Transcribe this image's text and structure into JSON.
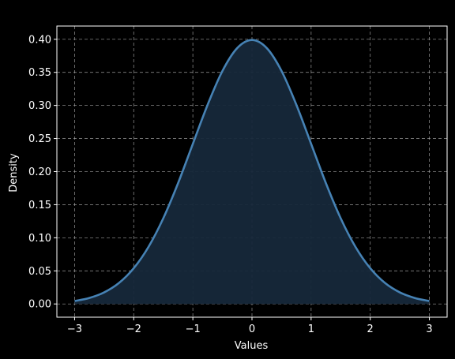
{
  "chart_data": {
    "type": "area",
    "title": "",
    "xlabel": "Values",
    "ylabel": "Density",
    "xlim": [
      -3.3,
      3.3
    ],
    "ylim": [
      -0.02,
      0.42
    ],
    "xticks": [
      -3,
      -2,
      -1,
      0,
      1,
      2,
      3
    ],
    "xtick_labels": [
      "−3",
      "−2",
      "−1",
      "0",
      "1",
      "2",
      "3"
    ],
    "yticks": [
      0.0,
      0.05,
      0.1,
      0.15,
      0.2,
      0.25,
      0.3,
      0.35,
      0.4
    ],
    "ytick_labels": [
      "0.00",
      "0.05",
      "0.10",
      "0.15",
      "0.20",
      "0.25",
      "0.30",
      "0.35",
      "0.40"
    ],
    "grid": true,
    "series": [
      {
        "x": [
          -3.0,
          -2.75,
          -2.5,
          -2.25,
          -2.0,
          -1.75,
          -1.5,
          -1.25,
          -1.0,
          -0.75,
          -0.5,
          -0.25,
          0.0,
          0.25,
          0.5,
          0.75,
          1.0,
          1.25,
          1.5,
          1.75,
          2.0,
          2.25,
          2.5,
          2.75,
          3.0
        ],
        "y": [
          0.0044,
          0.0091,
          0.0175,
          0.0317,
          0.054,
          0.0863,
          0.1295,
          0.1826,
          0.242,
          0.3011,
          0.3521,
          0.3867,
          0.3989,
          0.3867,
          0.3521,
          0.3011,
          0.242,
          0.1826,
          0.1295,
          0.0863,
          0.054,
          0.0317,
          0.0175,
          0.0091,
          0.0044
        ]
      }
    ],
    "colors": {
      "background": "#000000",
      "axes": "#ffffff",
      "grid": "#b0b0b0",
      "line": "#4682b4",
      "fill": "#16283a"
    }
  }
}
